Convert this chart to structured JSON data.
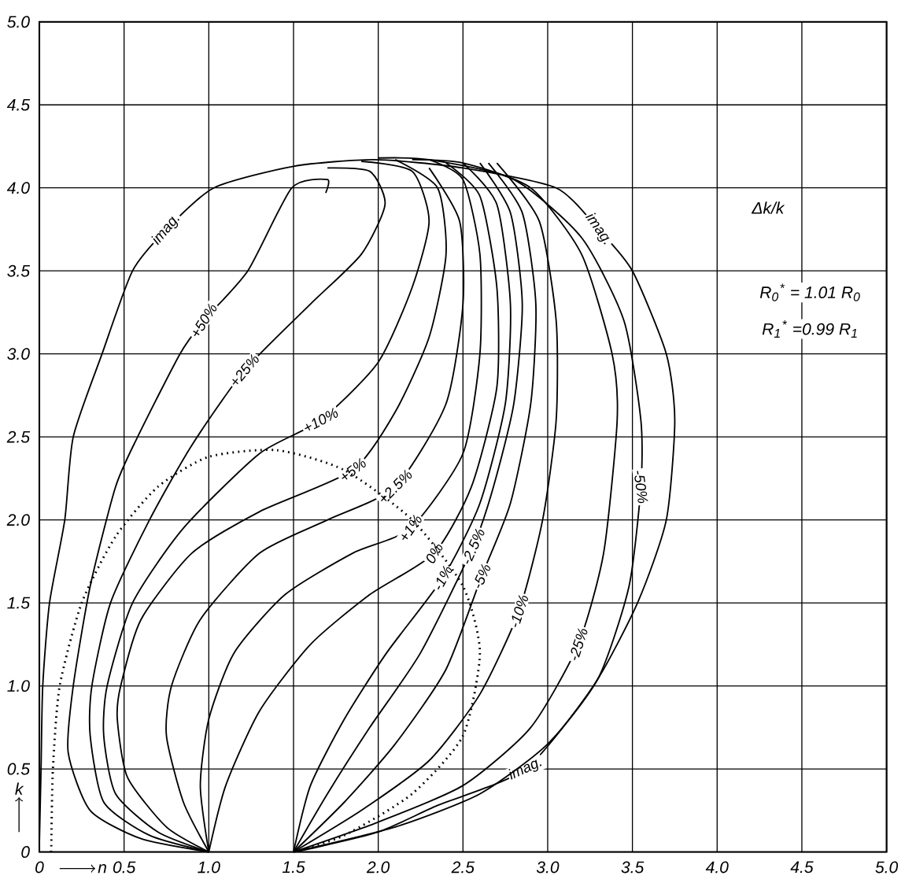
{
  "chart_data": {
    "type": "line",
    "xlabel": "n",
    "ylabel": "k",
    "xlim": [
      0,
      5
    ],
    "ylim": [
      0,
      5
    ],
    "xticks": [
      0,
      0.5,
      {
        "value": 1,
        "label": "1.0"
      },
      1.5,
      {
        "value": 2,
        "label": "2.0"
      },
      2.5,
      {
        "value": 3,
        "label": "3.0"
      },
      3.5,
      {
        "value": 4,
        "label": "4.0"
      },
      4.5,
      {
        "value": 5,
        "label": "5.0"
      }
    ],
    "yticks": [
      0,
      0.5,
      {
        "value": 1,
        "label": "1.0"
      },
      1.5,
      {
        "value": 2,
        "label": "2.0"
      },
      2.5,
      {
        "value": 3,
        "label": "3.0"
      },
      3.5,
      {
        "value": 4,
        "label": "4.0"
      },
      4.5,
      {
        "value": 5,
        "label": "5.0"
      }
    ],
    "grid": true,
    "annotations": [
      "Δk/k",
      "R$_{0}$$^{*}$ = 1.01 R$_{0}$",
      "R$_{1}$$^{*}$ =0.99 R$_{1}$"
    ],
    "series": [
      {
        "name": "imag.",
        "color": "#000000",
        "x": [
          0,
          0.01,
          0.02,
          0.06,
          0.15,
          0.2,
          0.37,
          0.55,
          0.75,
          1.03,
          1.5,
          1.98,
          2.5,
          3.05,
          3.3,
          3.5,
          3.7,
          3.75,
          3.7,
          3.53,
          3.27,
          2.87,
          2.35,
          2.0,
          1.6,
          1.5
        ],
        "values": [
          0.05,
          0.5,
          1.0,
          1.5,
          2.0,
          2.5,
          3.0,
          3.5,
          3.75,
          4.0,
          4.13,
          4.17,
          4.12,
          4.0,
          3.75,
          3.5,
          3.0,
          2.6,
          2.0,
          1.5,
          1.0,
          0.5,
          0.28,
          0.12,
          0.02,
          0
        ]
      },
      {
        "name": "+50%",
        "color": "#000000",
        "x": [
          1.0,
          0.6,
          0.3,
          0.17,
          0.2,
          0.3,
          0.45,
          0.58,
          0.83,
          0.97,
          1.23,
          1.49,
          1.7,
          1.69
        ],
        "values": [
          0,
          0.08,
          0.25,
          0.6,
          1.0,
          1.6,
          2.2,
          2.5,
          3.0,
          3.2,
          3.5,
          4.0,
          4.05,
          3.97
        ]
      },
      {
        "name": "+25%",
        "color": "#000000",
        "x": [
          1.0,
          0.65,
          0.38,
          0.3,
          0.31,
          0.42,
          0.65,
          0.9,
          1.21,
          1.6,
          1.9,
          2.04,
          1.95,
          1.7
        ],
        "values": [
          0,
          0.1,
          0.3,
          0.7,
          1.0,
          1.5,
          2.0,
          2.45,
          2.9,
          3.3,
          3.6,
          3.9,
          4.1,
          4.12
        ]
      },
      {
        "name": "+10%",
        "color": "#000000",
        "x": [
          1.0,
          0.7,
          0.45,
          0.38,
          0.4,
          0.55,
          0.85,
          1.3,
          1.66,
          2.0,
          2.2,
          2.3,
          2.2,
          1.9
        ],
        "values": [
          0,
          0.12,
          0.35,
          0.7,
          1.0,
          1.5,
          1.95,
          2.4,
          2.6,
          2.95,
          3.4,
          3.8,
          4.1,
          4.16
        ]
      },
      {
        "name": "+5%",
        "color": "#000000",
        "x": [
          1.0,
          0.75,
          0.52,
          0.46,
          0.48,
          0.6,
          0.9,
          1.3,
          1.85,
          2.1,
          2.3,
          2.4,
          2.35,
          2.1
        ],
        "values": [
          0,
          0.15,
          0.45,
          0.8,
          1.0,
          1.4,
          1.8,
          2.05,
          2.3,
          2.65,
          3.1,
          3.6,
          4.0,
          4.17
        ]
      },
      {
        "name": "+2.5%",
        "color": "#000000",
        "x": [
          1.0,
          0.85,
          0.75,
          0.78,
          0.95,
          1.3,
          1.7,
          2.1,
          2.4,
          2.5,
          2.48,
          2.3
        ],
        "values": [
          0,
          0.3,
          0.7,
          1.0,
          1.4,
          1.8,
          2.0,
          2.2,
          2.7,
          3.3,
          3.8,
          4.12
        ]
      },
      {
        "name": "+1%",
        "color": "#000000",
        "x": [
          1.0,
          0.95,
          1.0,
          1.15,
          1.45,
          1.85,
          2.19,
          2.5,
          2.6,
          2.6,
          2.5,
          2.3
        ],
        "values": [
          0,
          0.4,
          0.8,
          1.2,
          1.55,
          1.8,
          1.95,
          2.4,
          3.0,
          3.6,
          4.05,
          4.17
        ]
      },
      {
        "name": "0%",
        "color": "#000000",
        "x": [
          1.0,
          1.1,
          1.3,
          1.6,
          1.95,
          2.33,
          2.55,
          2.7,
          2.7,
          2.6,
          2.4
        ],
        "values": [
          0,
          0.4,
          0.85,
          1.25,
          1.55,
          1.8,
          2.2,
          2.8,
          3.4,
          3.95,
          4.15
        ]
      },
      {
        "name": "-1%",
        "color": "#000000",
        "x": [
          1.5,
          1.6,
          1.8,
          2.05,
          2.38,
          2.6,
          2.75,
          2.78,
          2.7,
          2.5
        ],
        "values": [
          0,
          0.4,
          0.8,
          1.2,
          1.65,
          2.1,
          2.7,
          3.3,
          3.9,
          4.15
        ]
      },
      {
        "name": "-2.5%",
        "color": "#000000",
        "x": [
          1.5,
          1.7,
          1.95,
          2.25,
          2.56,
          2.68,
          2.8,
          2.85,
          2.78,
          2.6
        ],
        "values": [
          0,
          0.35,
          0.75,
          1.2,
          1.84,
          2.2,
          2.7,
          3.3,
          3.85,
          4.15
        ]
      },
      {
        "name": "-5%",
        "color": "#000000",
        "x": [
          1.5,
          1.8,
          2.1,
          2.4,
          2.61,
          2.78,
          2.9,
          2.93,
          2.85,
          2.65
        ],
        "values": [
          0,
          0.3,
          0.65,
          1.1,
          1.66,
          2.1,
          2.7,
          3.3,
          3.85,
          4.15
        ]
      },
      {
        "name": "-10%",
        "color": "#000000",
        "x": [
          1.5,
          1.9,
          2.3,
          2.6,
          2.83,
          2.97,
          3.05,
          3.05,
          2.95,
          2.7
        ],
        "values": [
          0,
          0.25,
          0.55,
          0.95,
          1.45,
          2.0,
          2.6,
          3.2,
          3.8,
          4.15
        ]
      },
      {
        "name": "-25%",
        "color": "#000000",
        "x": [
          1.5,
          2.0,
          2.5,
          2.9,
          3.18,
          3.33,
          3.41,
          3.38,
          3.2,
          2.9,
          2.5,
          2.2
        ],
        "values": [
          0,
          0.18,
          0.4,
          0.75,
          1.25,
          1.8,
          2.6,
          3.0,
          3.6,
          4.0,
          4.15,
          4.17
        ]
      },
      {
        "name": "-50%",
        "color": "#000000",
        "x": [
          1.5,
          2.1,
          2.6,
          3.0,
          3.3,
          3.48,
          3.55,
          3.55,
          3.45,
          3.2,
          2.8,
          2.3,
          2.0
        ],
        "values": [
          0,
          0.15,
          0.35,
          0.65,
          1.05,
          1.6,
          2.2,
          2.6,
          3.2,
          3.7,
          4.05,
          4.17,
          4.18
        ]
      },
      {
        "color": "#000000",
        "line_style": "dotted",
        "x": [
          0.07,
          0.08,
          0.12,
          0.25,
          0.45,
          0.7,
          1.0,
          1.4,
          1.8,
          2.2,
          2.5,
          2.6,
          2.5,
          2.2,
          1.8,
          1.5
        ],
        "values": [
          0,
          0.5,
          1.0,
          1.5,
          1.9,
          2.2,
          2.38,
          2.42,
          2.3,
          2.0,
          1.6,
          1.2,
          0.7,
          0.35,
          0.1,
          0
        ]
      }
    ]
  }
}
